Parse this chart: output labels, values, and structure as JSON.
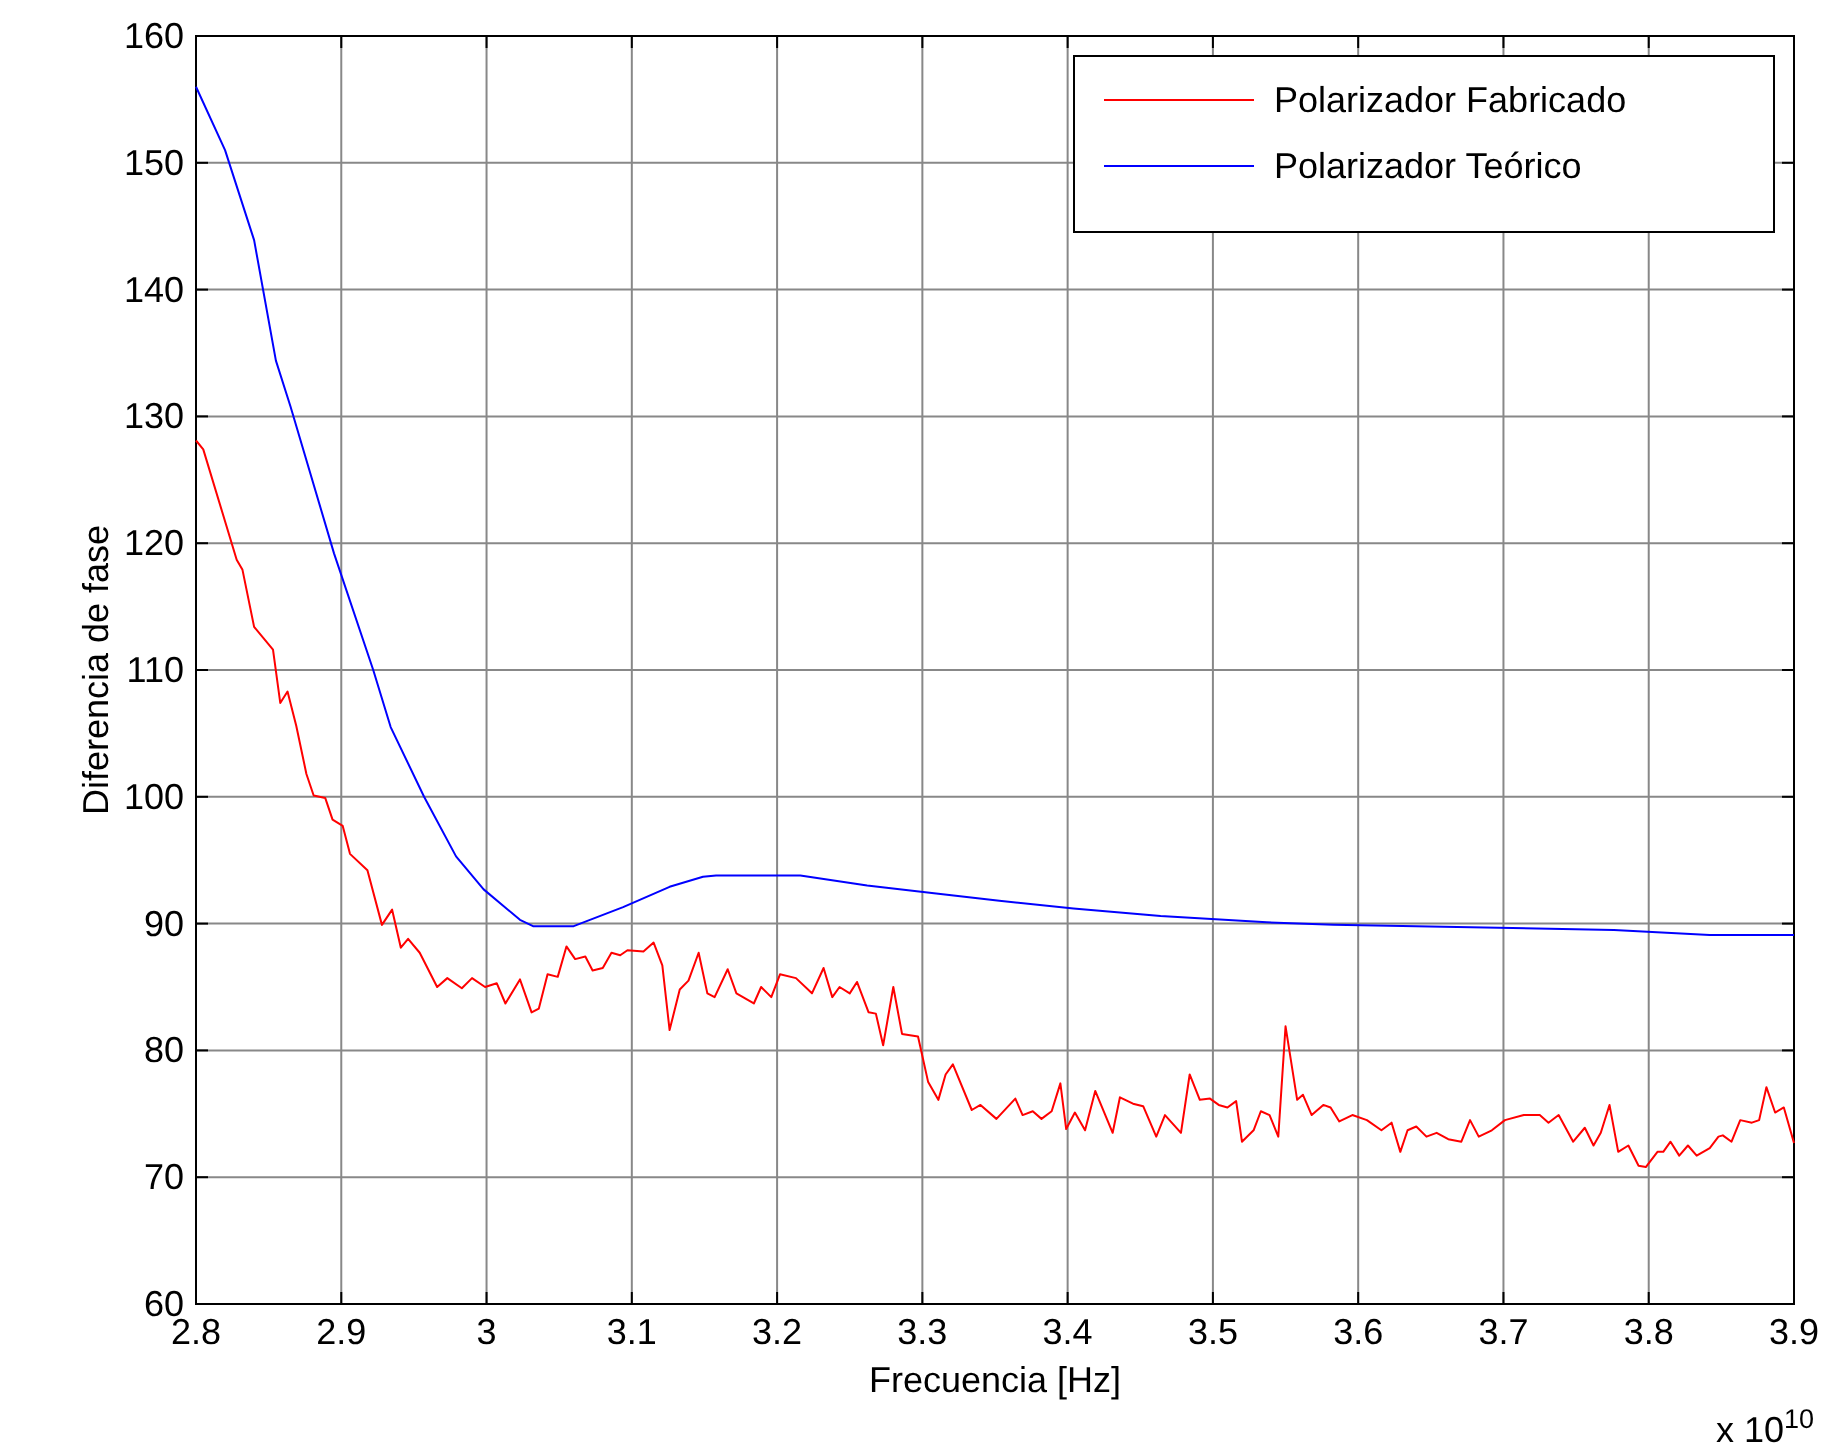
{
  "chart_data": {
    "type": "line",
    "xlabel": "Frecuencia [Hz]",
    "ylabel": "Diferencia de fase",
    "annotations": [
      "x 10$^{10}$"
    ],
    "xlim": [
      2.8,
      3.9
    ],
    "xticks": [
      2.8,
      2.9,
      3,
      3.1,
      3.2,
      3.3,
      3.4,
      3.5,
      3.6,
      3.7,
      3.8,
      3.9
    ],
    "ylim": [
      60,
      160
    ],
    "yticks": [
      60,
      70,
      80,
      90,
      100,
      110,
      120,
      130,
      140,
      150,
      160
    ],
    "grid": true,
    "legend": "top right",
    "marker": "none",
    "line_style": "solid",
    "series": [
      {
        "name": "Polarizador Fabricado",
        "color": "#ff0000",
        "x": [
          2.8,
          2.805,
          2.828,
          2.832,
          2.84,
          2.853,
          2.858,
          2.863,
          2.869,
          2.876,
          2.881,
          2.889,
          2.894,
          2.901,
          2.906,
          2.918,
          2.928,
          2.935,
          2.941,
          2.946,
          2.954,
          2.966,
          2.973,
          2.983,
          2.99,
          2.999,
          3.007,
          3.013,
          3.023,
          3.031,
          3.036,
          3.042,
          3.049,
          3.055,
          3.061,
          3.068,
          3.073,
          3.08,
          3.086,
          3.092,
          3.097,
          3.108,
          3.115,
          3.121,
          3.126,
          3.133,
          3.139,
          3.146,
          3.152,
          3.157,
          3.166,
          3.172,
          3.184,
          3.189,
          3.196,
          3.202,
          3.213,
          3.224,
          3.232,
          3.238,
          3.243,
          3.25,
          3.255,
          3.263,
          3.268,
          3.273,
          3.28,
          3.286,
          3.297,
          3.304,
          3.311,
          3.316,
          3.321,
          3.334,
          3.34,
          3.351,
          3.364,
          3.369,
          3.376,
          3.382,
          3.389,
          3.395,
          3.399,
          3.405,
          3.412,
          3.419,
          3.431,
          3.436,
          3.445,
          3.452,
          3.461,
          3.467,
          3.478,
          3.484,
          3.491,
          3.498,
          3.504,
          3.51,
          3.516,
          3.52,
          3.528,
          3.533,
          3.539,
          3.545,
          3.55,
          3.558,
          3.562,
          3.568,
          3.576,
          3.581,
          3.587,
          3.596,
          3.606,
          3.616,
          3.623,
          3.629,
          3.634,
          3.64,
          3.647,
          3.654,
          3.662,
          3.671,
          3.677,
          3.683,
          3.692,
          3.701,
          3.714,
          3.725,
          3.731,
          3.738,
          3.748,
          3.756,
          3.762,
          3.767,
          3.773,
          3.779,
          3.786,
          3.793,
          3.798,
          3.806,
          3.81,
          3.815,
          3.821,
          3.827,
          3.833,
          3.842,
          3.848,
          3.851,
          3.857,
          3.863,
          3.871,
          3.876,
          3.881,
          3.887,
          3.893,
          3.9
        ],
        "values": [
          128.1,
          127.4,
          118.7,
          117.9,
          113.4,
          111.6,
          107.4,
          108.3,
          105.6,
          101.8,
          100.1,
          99.9,
          98.2,
          97.7,
          95.5,
          94.2,
          89.9,
          91.1,
          88.1,
          88.8,
          87.7,
          85,
          85.7,
          84.9,
          85.7,
          85,
          85.3,
          83.7,
          85.6,
          83,
          83.3,
          86,
          85.8,
          88.2,
          87.2,
          87.4,
          86.3,
          86.5,
          87.7,
          87.5,
          87.9,
          87.8,
          88.5,
          86.7,
          81.6,
          84.8,
          85.5,
          87.7,
          84.5,
          84.2,
          86.4,
          84.5,
          83.7,
          85,
          84.2,
          86,
          85.7,
          84.5,
          86.5,
          84.2,
          85,
          84.5,
          85.4,
          83,
          82.9,
          80.4,
          85,
          81.3,
          81.1,
          77.5,
          76.1,
          78.1,
          78.9,
          75.3,
          75.7,
          74.6,
          76.2,
          74.9,
          75.2,
          74.6,
          75.2,
          77.4,
          73.8,
          75.1,
          73.7,
          76.8,
          73.5,
          76.3,
          75.8,
          75.6,
          73.2,
          74.9,
          73.5,
          78.1,
          76.1,
          76.2,
          75.7,
          75.5,
          76,
          72.8,
          73.7,
          75.2,
          74.9,
          73.2,
          81.9,
          76.1,
          76.5,
          74.9,
          75.7,
          75.5,
          74.4,
          74.9,
          74.5,
          73.7,
          74.3,
          72,
          73.7,
          74,
          73.2,
          73.5,
          73,
          72.8,
          74.5,
          73.2,
          73.7,
          74.5,
          74.9,
          74.9,
          74.3,
          74.9,
          72.8,
          73.9,
          72.5,
          73.5,
          75.7,
          72,
          72.5,
          70.9,
          70.8,
          72,
          72,
          72.8,
          71.7,
          72.5,
          71.7,
          72.3,
          73.2,
          73.3,
          72.8,
          74.5,
          74.3,
          74.5,
          77.1,
          75.1,
          75.5,
          72.7
        ]
      },
      {
        "name": "Polarizador Teórico",
        "color": "#0000ff",
        "x": [
          2.8,
          2.82,
          2.84,
          2.855,
          2.865,
          2.895,
          2.922,
          2.934,
          2.957,
          2.979,
          2.998,
          3.023,
          3.032,
          3.06,
          3.094,
          3.126,
          3.149,
          3.158,
          3.216,
          3.262,
          3.308,
          3.353,
          3.404,
          3.464,
          3.537,
          3.583,
          3.776,
          3.842,
          3.9
        ],
        "values": [
          156,
          151,
          143.9,
          134.4,
          130.8,
          119.2,
          110,
          105.5,
          100,
          95.3,
          92.7,
          90.3,
          89.8,
          89.8,
          91.3,
          92.9,
          93.7,
          93.8,
          93.8,
          93,
          92.4,
          91.8,
          91.2,
          90.6,
          90.1,
          89.9,
          89.5,
          89.1,
          89.1
        ]
      }
    ]
  }
}
